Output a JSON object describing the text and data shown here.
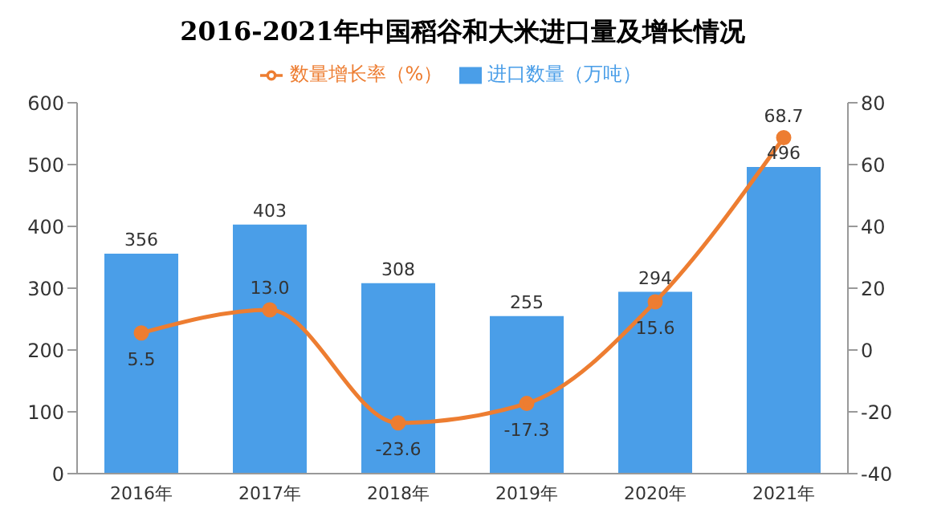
{
  "chart_data": {
    "type": "bar",
    "title": "2016-2021年中国稻谷和大米进口量及增长情况",
    "categories": [
      "2016年",
      "2017年",
      "2018年",
      "2019年",
      "2020年",
      "2021年"
    ],
    "series": [
      {
        "name": "进口数量（万吨）",
        "color": "#4a9ee8",
        "values": [
          356,
          403,
          308,
          255,
          294,
          496
        ]
      },
      {
        "name": "数量增长率（%）",
        "type": "line",
        "axis": "y2",
        "color": "#ed7d31",
        "marker": "circle",
        "values": [
          5.5,
          13.0,
          -23.6,
          -17.3,
          15.6,
          68.7
        ],
        "value_labels": [
          "5.5",
          "13.0",
          "-23.6",
          "-17.3",
          "15.6",
          "68.7"
        ]
      }
    ],
    "ylim": [
      0,
      600
    ],
    "yticks": [
      0,
      100,
      200,
      300,
      400,
      500,
      600
    ],
    "y2lim": [
      -40,
      80
    ],
    "y2ticks": [
      -40,
      -20,
      0,
      20,
      40,
      60,
      80
    ],
    "data_labels": true,
    "legend": "top",
    "grid": false
  }
}
